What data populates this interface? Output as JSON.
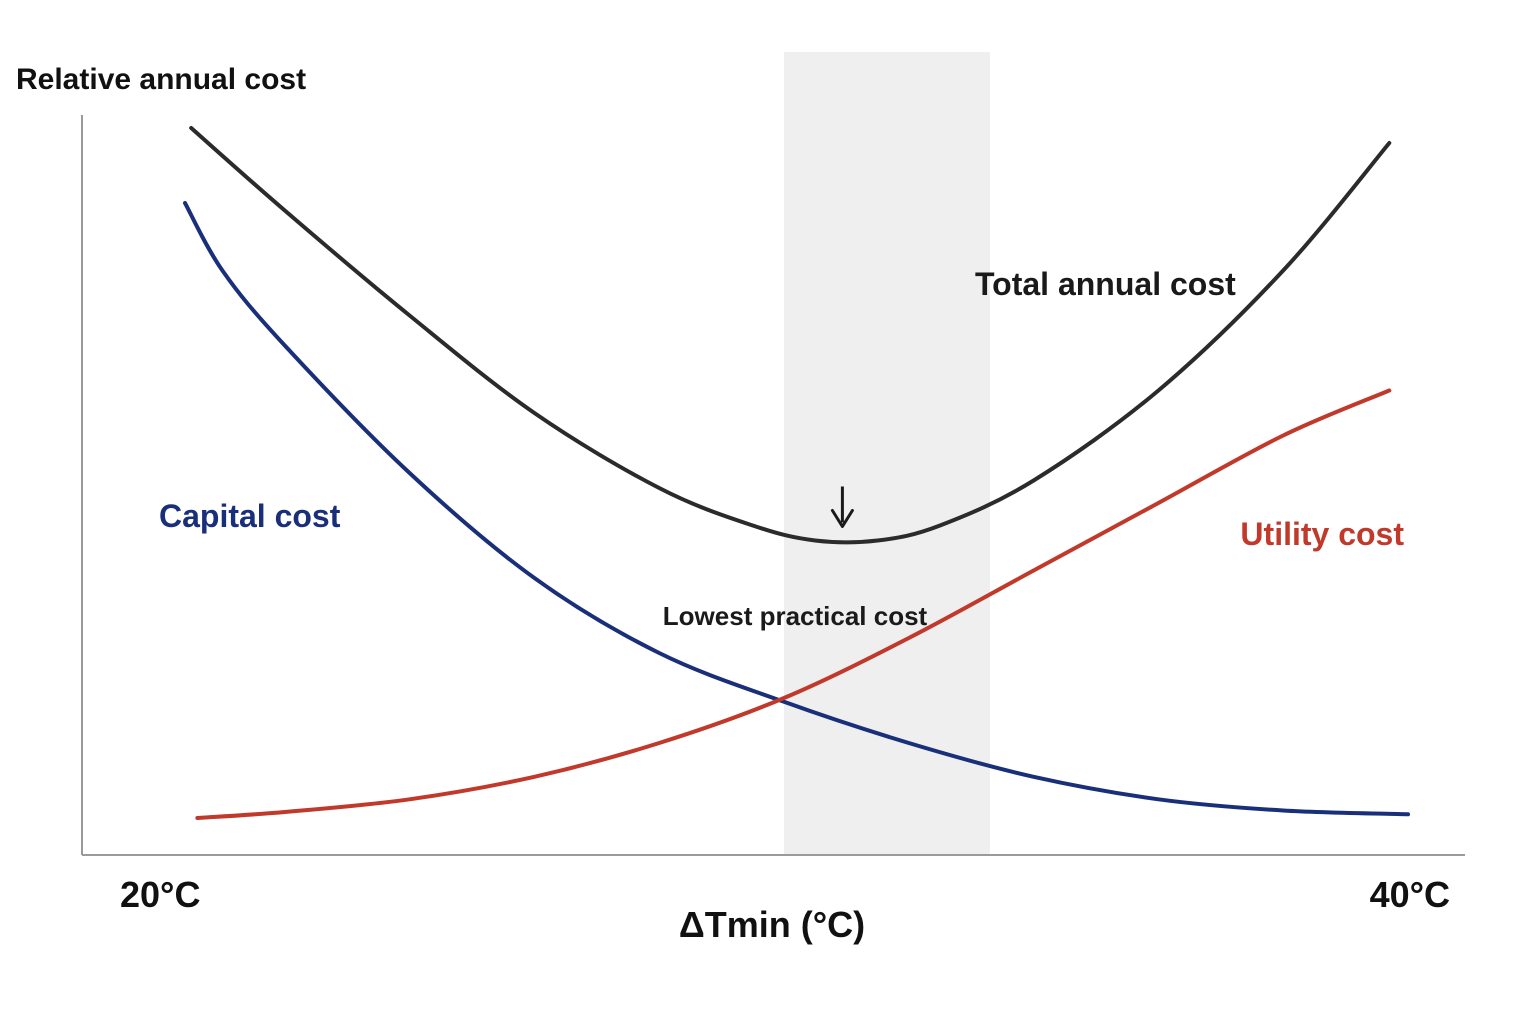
{
  "chart_data": {
    "type": "line",
    "title": "",
    "ylabel": "Relative annual cost",
    "xlabel": "ΔTmin (°C)",
    "x_tick_labels": [
      "20°C",
      "40°C"
    ],
    "xlim": [
      20,
      40
    ],
    "ylim": [
      0,
      100
    ],
    "grid": false,
    "highlight_band": {
      "x_range": [
        30,
        33.3
      ],
      "label": "Lowest practical cost"
    },
    "series": [
      {
        "name": "Total annual cost",
        "color": "#2b2b2b",
        "x": [
          20.5,
          22,
          24,
          26,
          28,
          29.5,
          30.5,
          31.5,
          32.5,
          34,
          36,
          38,
          39.7
        ],
        "y": [
          96,
          85,
          71,
          58,
          48,
          43,
          41,
          41,
          43,
          49,
          61,
          77,
          94
        ]
      },
      {
        "name": "Capital cost",
        "color": "#1a2f7a",
        "x": [
          20.4,
          21,
          22,
          24,
          26,
          28,
          30,
          32,
          34,
          36,
          38,
          40
        ],
        "y": [
          86,
          77,
          67,
          50,
          36,
          26,
          19.5,
          14,
          9.5,
          6.5,
          5,
          4.5
        ]
      },
      {
        "name": "Utility cost",
        "color": "#c0392b",
        "x": [
          20.6,
          22,
          24,
          26,
          28,
          30,
          32,
          34,
          36,
          38,
          39.7
        ],
        "y": [
          4,
          4.8,
          6.5,
          9.5,
          14,
          20,
          28,
          37,
          46,
          55,
          61
        ]
      }
    ],
    "annotations": [
      {
        "text": "Total annual cost",
        "color": "#1a1a1a"
      },
      {
        "text": "Capital cost",
        "color": "#1a2f7a"
      },
      {
        "text": "Utility cost",
        "color": "#c0392b"
      },
      {
        "text": "Lowest practical cost",
        "color": "#1a1a1a"
      }
    ],
    "axis_color": "#9a9a9a",
    "band_color": "#efefef"
  }
}
